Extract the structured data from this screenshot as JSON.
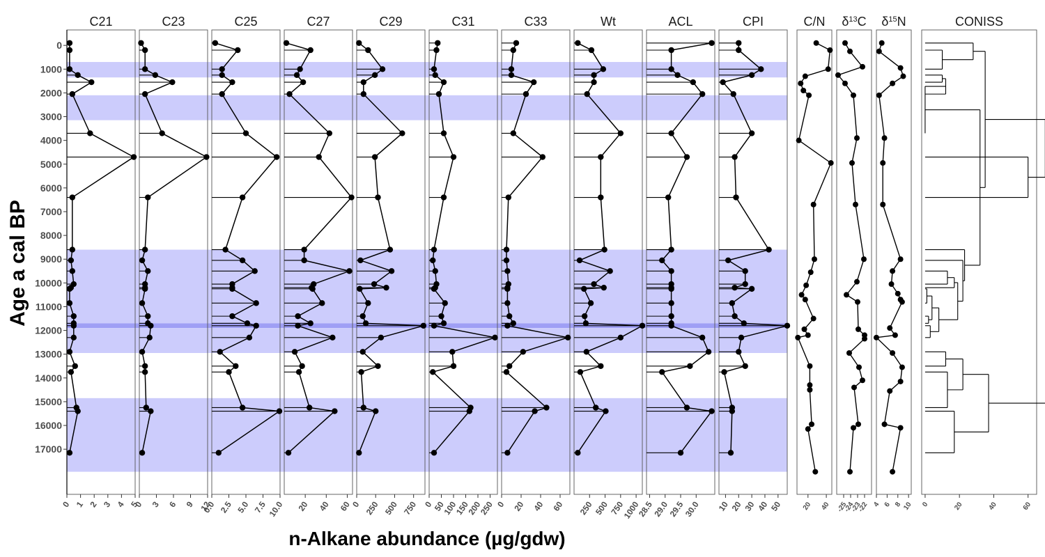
{
  "chart_data": {
    "type": "line",
    "title": "",
    "xlabel": "n-Alkane abundance (µg/gdw)",
    "ylabel": "Age a cal BP",
    "ylim": [
      18900,
      -650
    ],
    "yticks": [
      0,
      1000,
      2000,
      3000,
      4000,
      5000,
      6000,
      7000,
      8000,
      9000,
      10000,
      11000,
      12000,
      13000,
      14000,
      15000,
      16000,
      17000
    ],
    "ages": [
      -100,
      200,
      1000,
      1250,
      1550,
      2050,
      3700,
      4700,
      6400,
      8600,
      9050,
      9500,
      10050,
      10200,
      10250,
      10850,
      11400,
      11700,
      11800,
      12300,
      12900,
      13500,
      13750,
      15250,
      15400,
      17150
    ],
    "shaded_bands": [
      [
        700,
        1350
      ],
      [
        2100,
        3150
      ],
      [
        8600,
        11700
      ],
      [
        11700,
        11900
      ],
      [
        11900,
        12950
      ],
      [
        14850,
        17950
      ]
    ],
    "panels": [
      {
        "name": "C21",
        "xlim": [
          0,
          5
        ],
        "ticks": [
          "0",
          "1",
          "2",
          "3",
          "4",
          "5"
        ],
        "values": [
          0.2,
          0.2,
          0.2,
          0.8,
          1.8,
          0.4,
          1.7,
          4.9,
          0.4,
          0.4,
          0.3,
          0.4,
          0.5,
          0.3,
          0.2,
          0.2,
          0.5,
          0.5,
          0.5,
          0.5,
          0.2,
          0.6,
          0.3,
          0.7,
          0.8,
          0.2
        ]
      },
      {
        "name": "C23",
        "xlim": [
          0,
          12
        ],
        "ticks": [
          "0",
          "3",
          "6",
          "9",
          "12"
        ],
        "values": [
          0.3,
          1.0,
          1.0,
          2.8,
          5.8,
          1.0,
          4.0,
          11.8,
          1.5,
          1.0,
          0.5,
          1.5,
          1.0,
          1.0,
          1.0,
          0.5,
          1.5,
          1.5,
          2.0,
          1.8,
          0.5,
          1.0,
          1.0,
          1.2,
          2.0,
          0.5
        ]
      },
      {
        "name": "C25",
        "xlim": [
          0,
          10
        ],
        "ticks": [
          "0.0",
          "2.5",
          "5.0",
          "7.5",
          "10.0"
        ],
        "values": [
          0.5,
          3.8,
          1.5,
          1.5,
          3.0,
          1.5,
          5.0,
          9.5,
          4.5,
          2.0,
          4.5,
          6.3,
          3.0,
          3.0,
          3.0,
          6.5,
          3.0,
          5.2,
          6.5,
          5.5,
          1.2,
          3.5,
          2.5,
          4.5,
          9.9,
          1.0
        ]
      },
      {
        "name": "C27",
        "xlim": [
          0,
          65
        ],
        "ticks": [
          "20",
          "40",
          "60"
        ],
        "values": [
          2,
          25,
          15,
          12,
          18,
          5,
          43,
          33,
          64,
          19,
          19,
          62,
          28,
          26,
          27,
          36,
          13,
          25,
          13,
          46,
          10,
          17,
          14,
          24,
          48,
          4
        ]
      },
      {
        "name": "C29",
        "xlim": [
          0,
          900
        ],
        "ticks": [
          "0",
          "250",
          "500",
          "750"
        ],
        "values": [
          30,
          150,
          340,
          240,
          90,
          90,
          600,
          240,
          280,
          440,
          50,
          460,
          230,
          390,
          40,
          150,
          80,
          120,
          880,
          320,
          80,
          280,
          60,
          90,
          250,
          30
        ]
      },
      {
        "name": "C31",
        "xlim": [
          0,
          280
        ],
        "ticks": [
          "0",
          "50",
          "100",
          "150",
          "200",
          "250"
        ],
        "values": [
          35,
          30,
          20,
          25,
          60,
          40,
          60,
          100,
          60,
          20,
          15,
          25,
          30,
          25,
          20,
          65,
          50,
          60,
          20,
          270,
          95,
          100,
          15,
          170,
          165,
          20
        ]
      },
      {
        "name": "C33",
        "xlim": [
          0,
          70
        ],
        "ticks": [
          "0",
          "20",
          "40",
          "60"
        ],
        "values": [
          15,
          12,
          10,
          10,
          33,
          25,
          12,
          42,
          7,
          5,
          5,
          6,
          7,
          6,
          6,
          6,
          8,
          12,
          6,
          68,
          22,
          8,
          5,
          46,
          34,
          6
        ]
      },
      {
        "name": "Wt",
        "xlim": [
          0,
          1100
        ],
        "ticks": [
          "250",
          "500",
          "750",
          "1000"
        ],
        "values": [
          60,
          280,
          470,
          320,
          320,
          210,
          750,
          430,
          430,
          490,
          90,
          580,
          320,
          480,
          160,
          270,
          170,
          190,
          1100,
          750,
          200,
          430,
          100,
          350,
          510,
          60
        ]
      },
      {
        "name": "ACL",
        "xlim": [
          28.4,
          30.6
        ],
        "ticks": [
          "28.5",
          "29.0",
          "29.5",
          "30.0"
        ],
        "values": [
          30.5,
          29.2,
          29.2,
          29.4,
          29.9,
          30.2,
          29.2,
          29.7,
          29.1,
          29.2,
          28.9,
          29.2,
          29.2,
          29.2,
          29.2,
          29.2,
          29.2,
          29.2,
          29.2,
          30.2,
          30.4,
          29.8,
          28.9,
          29.7,
          30.5,
          29.5
        ]
      },
      {
        "name": "CPI",
        "xlim": [
          5,
          57
        ],
        "ticks": [
          "10",
          "20",
          "30",
          "40",
          "50"
        ],
        "values": [
          20,
          20,
          37,
          30,
          8,
          16,
          30,
          17,
          18,
          43,
          12,
          25,
          25,
          17,
          30,
          15,
          17,
          24,
          57,
          22,
          20,
          25,
          9,
          15,
          15,
          14
        ]
      }
    ],
    "geochem_panels": [
      {
        "name": "C/N",
        "xlim": [
          8,
          46
        ],
        "ticks": [
          "20",
          "40"
        ],
        "ages": [
          -100,
          200,
          1000,
          1300,
          1600,
          1900,
          2100,
          4000,
          4950,
          6700,
          9000,
          9550,
          10100,
          10500,
          10700,
          11500,
          11950,
          12200,
          12300,
          13500,
          14300,
          14500,
          15950,
          16150,
          17950
        ],
        "values": [
          29,
          44,
          42,
          17,
          12,
          15,
          21,
          10,
          45,
          26,
          27,
          23,
          18,
          13,
          17,
          26,
          16,
          20,
          9,
          22,
          22,
          22,
          24,
          20,
          28
        ]
      },
      {
        "name": "δ13C",
        "xlim": [
          -26,
          -21
        ],
        "ticks": [
          "-25",
          "-24",
          "-23",
          "-22"
        ],
        "ages": [
          -100,
          250,
          900,
          1250,
          1600,
          2100,
          3900,
          4950,
          6700,
          9000,
          9950,
          10500,
          10800,
          11950,
          12200,
          12350,
          12950,
          13550,
          14100,
          14400,
          15950,
          16100,
          17950
        ],
        "values": [
          -24.8,
          -24.1,
          -22.3,
          -25.8,
          -24.8,
          -23.6,
          -23.1,
          -23.8,
          -23.3,
          -22.1,
          -23.1,
          -24.6,
          -23.0,
          -22.9,
          -22.0,
          -22.0,
          -24.2,
          -22.8,
          -22.3,
          -23.5,
          -22.9,
          -23.6,
          -24.1
        ]
      },
      {
        "name": "δ15N",
        "xlim": [
          4,
          10.5
        ],
        "ticks": [
          "4",
          "6",
          "8",
          "10"
        ],
        "ages": [
          -100,
          250,
          950,
          1300,
          1600,
          2100,
          3900,
          4950,
          6700,
          9000,
          9500,
          10050,
          10450,
          10700,
          10800,
          11900,
          12200,
          12300,
          12950,
          13550,
          14150,
          14550,
          15950,
          16100,
          17950
        ],
        "values": [
          5.0,
          4.5,
          8.5,
          9.0,
          7.0,
          4.5,
          5.5,
          5.2,
          5.2,
          8.5,
          7.0,
          6.8,
          8.0,
          8.5,
          8.8,
          6.5,
          7.5,
          4.0,
          7.0,
          8.8,
          8.5,
          6.5,
          5.5,
          8.5,
          7.0
        ]
      }
    ],
    "coniss": {
      "name": "CONISS",
      "xlim": [
        -2,
        65
      ],
      "ticks": [
        "0",
        "20",
        "40",
        "60"
      ]
    }
  }
}
